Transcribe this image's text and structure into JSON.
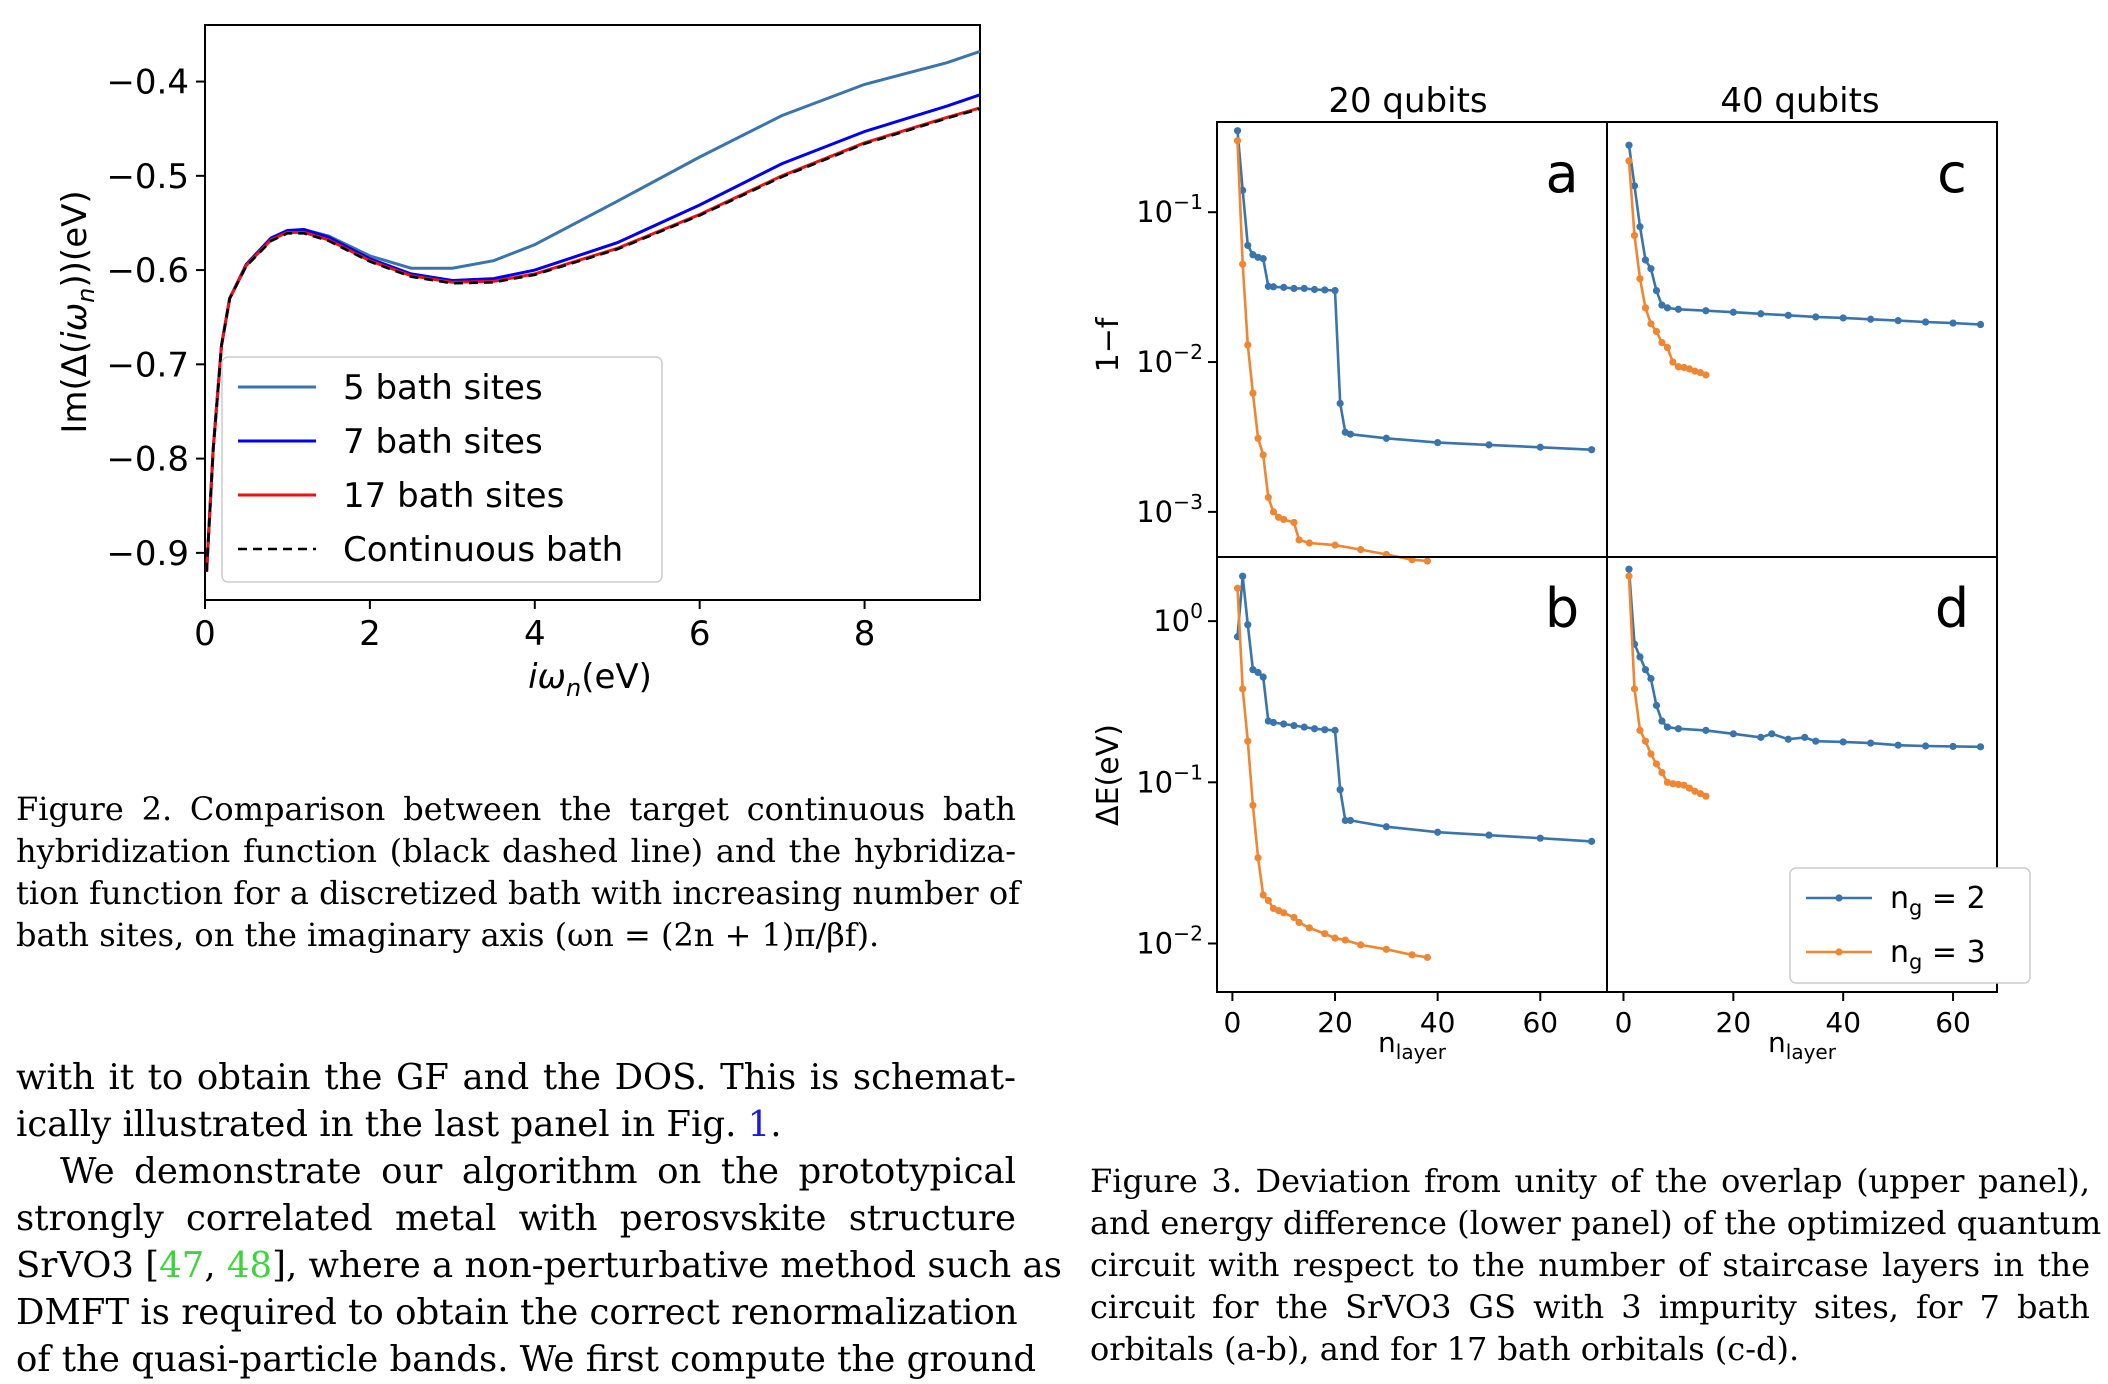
{
  "figure2": {
    "caption_lines": [
      "Figure 2.  Comparison between the target continuous bath",
      "hybridization function (black dashed line) and the hybridiza-",
      "tion function for a discretized bath with increasing number of",
      "bath sites, on the imaginary axis (ωn = (2n + 1)π/βf)."
    ],
    "chart_data": {
      "type": "line",
      "xlabel": "iωn(eV)",
      "ylabel": "Im(Δ(iωn))(eV)",
      "xlim": [
        0,
        9.4
      ],
      "ylim": [
        -0.95,
        -0.34
      ],
      "xticks": [
        "0",
        "2",
        "4",
        "6",
        "8"
      ],
      "yticks": [
        "−0.4",
        "−0.5",
        "−0.6",
        "−0.7",
        "−0.8",
        "−0.9"
      ],
      "legend_position": "lower-left",
      "series": [
        {
          "name": "5 bath sites",
          "color": "#3a74ad",
          "style": "solid",
          "x": [
            0.02,
            0.1,
            0.2,
            0.3,
            0.5,
            0.8,
            1.0,
            1.2,
            1.5,
            2.0,
            2.5,
            3.0,
            3.5,
            4.0,
            5.0,
            6.0,
            7.0,
            8.0,
            9.0,
            9.4
          ],
          "y": [
            -0.92,
            -0.79,
            -0.68,
            -0.63,
            -0.595,
            -0.567,
            -0.559,
            -0.557,
            -0.564,
            -0.585,
            -0.598,
            -0.598,
            -0.59,
            -0.573,
            -0.527,
            -0.48,
            -0.436,
            -0.403,
            -0.38,
            -0.368
          ]
        },
        {
          "name": "7 bath sites",
          "color": "#0000ee",
          "style": "solid",
          "x": [
            0.02,
            0.1,
            0.2,
            0.3,
            0.5,
            0.8,
            1.0,
            1.2,
            1.5,
            2.0,
            2.5,
            3.0,
            3.5,
            4.0,
            5.0,
            6.0,
            7.0,
            8.0,
            9.0,
            9.4
          ],
          "y": [
            -0.92,
            -0.79,
            -0.68,
            -0.63,
            -0.594,
            -0.566,
            -0.558,
            -0.557,
            -0.565,
            -0.588,
            -0.604,
            -0.611,
            -0.609,
            -0.6,
            -0.571,
            -0.531,
            -0.487,
            -0.453,
            -0.426,
            -0.414
          ]
        },
        {
          "name": "17 bath sites",
          "color": "#ee1111",
          "style": "solid",
          "x": [
            0.02,
            0.1,
            0.2,
            0.3,
            0.5,
            0.8,
            1.0,
            1.2,
            1.5,
            2.0,
            2.5,
            3.0,
            3.5,
            4.0,
            5.0,
            6.0,
            7.0,
            8.0,
            9.0,
            9.4
          ],
          "y": [
            -0.92,
            -0.79,
            -0.68,
            -0.63,
            -0.595,
            -0.568,
            -0.56,
            -0.56,
            -0.568,
            -0.59,
            -0.606,
            -0.613,
            -0.612,
            -0.604,
            -0.577,
            -0.541,
            -0.5,
            -0.465,
            -0.438,
            -0.428
          ]
        },
        {
          "name": "Continuous bath",
          "color": "#000000",
          "style": "dashed",
          "x": [
            0.02,
            0.1,
            0.2,
            0.3,
            0.5,
            0.8,
            1.0,
            1.2,
            1.5,
            2.0,
            2.5,
            3.0,
            3.5,
            4.0,
            5.0,
            6.0,
            7.0,
            8.0,
            9.0,
            9.4
          ],
          "y": [
            -0.92,
            -0.79,
            -0.68,
            -0.63,
            -0.596,
            -0.569,
            -0.561,
            -0.561,
            -0.569,
            -0.591,
            -0.607,
            -0.614,
            -0.613,
            -0.605,
            -0.578,
            -0.542,
            -0.501,
            -0.466,
            -0.439,
            -0.429
          ]
        }
      ]
    }
  },
  "figure3": {
    "caption_lines": [
      "Figure 3. Deviation from unity of the overlap (upper panel),",
      "and energy difference (lower panel) of the optimized quantum",
      "circuit with respect to the number of staircase layers in the",
      "circuit for the SrVO3 GS with 3 impurity sites, for 7 bath",
      "orbitals (a-b), and for 17 bath orbitals (c-d)."
    ],
    "column_titles": [
      "20 qubits",
      "40 qubits"
    ],
    "panel_letters": [
      "a",
      "b",
      "c",
      "d"
    ],
    "top_ylabel": "1−f",
    "bottom_ylabel": "ΔE(eV)",
    "xlabel": "nlayer",
    "xticks": [
      "0",
      "20",
      "40",
      "60"
    ],
    "top_yticks": [
      "10−1",
      "10−2",
      "10−3"
    ],
    "bottom_yticks": [
      "100",
      "10−1",
      "10−2"
    ],
    "legend": {
      "position": "lower-right",
      "entries": [
        "ng = 2",
        "ng = 3"
      ]
    },
    "chart_data": [
      {
        "panel": "a",
        "type": "line",
        "yscale": "log",
        "xlim": [
          -3,
          73
        ],
        "ylim": [
          0.0005,
          0.4
        ],
        "series": [
          {
            "name": "ng = 2",
            "color": "#3a74ad",
            "x": [
              1,
              2,
              3,
              4,
              5,
              6,
              7,
              8,
              10,
              12,
              14,
              16,
              18,
              20,
              21,
              22,
              23,
              30,
              40,
              50,
              60,
              70
            ],
            "y": [
              0.35,
              0.14,
              0.06,
              0.052,
              0.05,
              0.049,
              0.032,
              0.0318,
              0.0315,
              0.031,
              0.031,
              0.0305,
              0.0303,
              0.03,
              0.0053,
              0.0034,
              0.0033,
              0.0031,
              0.0029,
              0.0028,
              0.0027,
              0.0026
            ]
          },
          {
            "name": "ng = 3",
            "color": "#ef8632",
            "x": [
              1,
              2,
              3,
              4,
              5,
              6,
              7,
              8,
              9,
              10,
              12,
              13,
              15,
              20,
              25,
              30,
              35,
              38
            ],
            "y": [
              0.3,
              0.045,
              0.013,
              0.0062,
              0.0031,
              0.0024,
              0.00125,
              0.001,
              0.00092,
              0.00089,
              0.00085,
              0.00065,
              0.00062,
              0.0006,
              0.00056,
              0.00052,
              0.00048,
              0.00047
            ]
          }
        ]
      },
      {
        "panel": "b",
        "type": "line",
        "yscale": "log",
        "xlim": [
          -3,
          73
        ],
        "ylim": [
          0.005,
          2.5
        ],
        "series": [
          {
            "name": "ng = 2",
            "color": "#3a74ad",
            "x": [
              1,
              2,
              3,
              4,
              5,
              6,
              7,
              8,
              10,
              12,
              14,
              16,
              18,
              20,
              21,
              22,
              23,
              30,
              40,
              50,
              60,
              70
            ],
            "y": [
              0.8,
              1.9,
              0.95,
              0.5,
              0.48,
              0.45,
              0.24,
              0.235,
              0.23,
              0.225,
              0.22,
              0.215,
              0.212,
              0.21,
              0.09,
              0.058,
              0.058,
              0.053,
              0.049,
              0.047,
              0.045,
              0.043
            ]
          },
          {
            "name": "ng = 3",
            "color": "#ef8632",
            "x": [
              1,
              2,
              3,
              4,
              5,
              6,
              7,
              8,
              9,
              10,
              12,
              13,
              15,
              18,
              20,
              22,
              25,
              30,
              35,
              38
            ],
            "y": [
              1.6,
              0.38,
              0.18,
              0.072,
              0.034,
              0.02,
              0.0185,
              0.0165,
              0.016,
              0.0155,
              0.0145,
              0.0135,
              0.0125,
              0.0115,
              0.0108,
              0.0105,
              0.0098,
              0.0092,
              0.0085,
              0.0082
            ]
          }
        ]
      },
      {
        "panel": "c",
        "type": "line",
        "yscale": "log",
        "xlim": [
          -3,
          68
        ],
        "ylim": [
          0.0005,
          0.4
        ],
        "series": [
          {
            "name": "ng = 2",
            "color": "#3a74ad",
            "x": [
              1,
              2,
              3,
              4,
              5,
              6,
              7,
              8,
              10,
              15,
              20,
              25,
              30,
              35,
              40,
              45,
              50,
              55,
              60,
              65
            ],
            "y": [
              0.28,
              0.15,
              0.08,
              0.048,
              0.042,
              0.03,
              0.024,
              0.023,
              0.0225,
              0.022,
              0.0215,
              0.021,
              0.0205,
              0.02,
              0.0197,
              0.0193,
              0.0189,
              0.0185,
              0.0182,
              0.0178
            ]
          },
          {
            "name": "ng = 3",
            "color": "#ef8632",
            "x": [
              1,
              2,
              3,
              4,
              5,
              6,
              7,
              8,
              9,
              10,
              11,
              12,
              13,
              14,
              15
            ],
            "y": [
              0.22,
              0.07,
              0.036,
              0.023,
              0.018,
              0.016,
              0.0135,
              0.0125,
              0.01,
              0.0093,
              0.0092,
              0.009,
              0.0087,
              0.0085,
              0.0082
            ]
          }
        ]
      },
      {
        "panel": "d",
        "type": "line",
        "yscale": "log",
        "xlim": [
          -3,
          68
        ],
        "ylim": [
          0.005,
          2.5
        ],
        "series": [
          {
            "name": "ng = 2",
            "color": "#3a74ad",
            "x": [
              1,
              2,
              3,
              4,
              5,
              6,
              7,
              8,
              10,
              15,
              20,
              25,
              27,
              30,
              33,
              35,
              40,
              45,
              50,
              55,
              60,
              65
            ],
            "y": [
              2.1,
              0.72,
              0.6,
              0.5,
              0.44,
              0.3,
              0.24,
              0.22,
              0.215,
              0.21,
              0.2,
              0.19,
              0.2,
              0.185,
              0.19,
              0.18,
              0.178,
              0.175,
              0.17,
              0.168,
              0.167,
              0.166
            ]
          },
          {
            "name": "ng = 3",
            "color": "#ef8632",
            "x": [
              1,
              2,
              3,
              4,
              5,
              6,
              7,
              8,
              9,
              10,
              11,
              12,
              13,
              14,
              15
            ],
            "y": [
              1.9,
              0.38,
              0.21,
              0.18,
              0.15,
              0.13,
              0.115,
              0.1,
              0.098,
              0.097,
              0.096,
              0.092,
              0.088,
              0.085,
              0.082
            ]
          }
        ]
      }
    ]
  },
  "body": {
    "line1": "with it to obtain the GF and the DOS. This is schemat-",
    "line2_pre": "ically illustrated in the last panel in Fig. ",
    "line2_ref": "1",
    "line2_post": ".",
    "line3": "We demonstrate our algorithm on the prototypical",
    "line4": "strongly correlated metal with perosvskite structure",
    "line5_pre": "SrVO3 [",
    "line5_ref1": "47",
    "line5_sep": ", ",
    "line5_ref2": "48",
    "line5_post": "], where a non-perturbative method such as",
    "line6": "DMFT is required to obtain the correct renormalization",
    "line7": "of the quasi-particle bands. We first compute the ground"
  }
}
